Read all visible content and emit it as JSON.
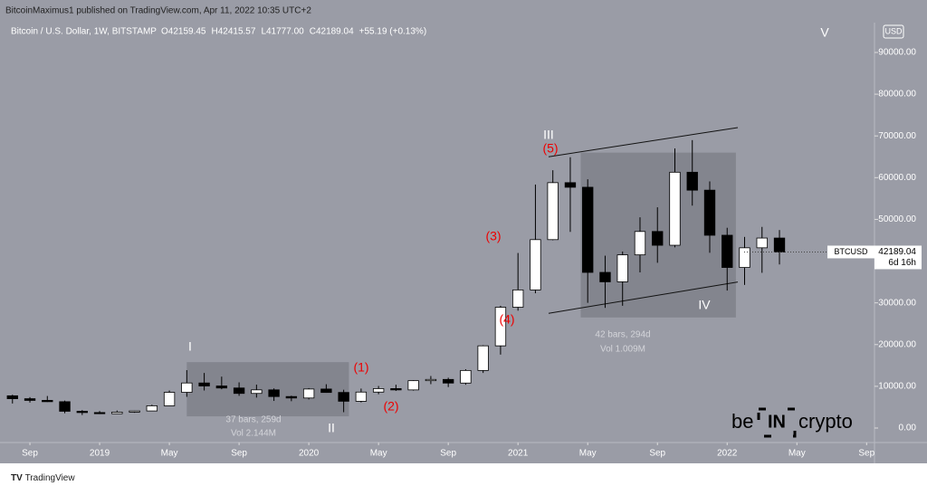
{
  "header": {
    "publisher": "BitcoinMaximus1 published on TradingView.com, Apr 11, 2022 10:35 UTC+2",
    "currency": "USD"
  },
  "footer": {
    "brand": "TradingView"
  },
  "logo": {
    "left": "be",
    "mid": "IN",
    "right": "crypto"
  },
  "chart_data": {
    "type": "candlestick",
    "title": "Bitcoin / U.S. Dollar, 1W, BITSTAMP",
    "ohlc_text": [
      "O42159.45",
      "H42415.57",
      "L41777.00",
      "C42189.04",
      "+55.19 (+0.13%)"
    ],
    "symbol": "BTCUSD",
    "last_price": 42189.04,
    "countdown": "6d 16h",
    "up_color": "#ffffff",
    "down_color": "#000000",
    "open": [
      7730,
      7030,
      6625,
      6317,
      4020,
      3710,
      3440,
      3820,
      4100,
      5330,
      8560,
      10800,
      10080,
      9600,
      8300,
      9150,
      7550,
      7200,
      9350,
      8530,
      6420,
      8620,
      9450,
      9140,
      11350,
      11650,
      10780,
      13800,
      19700,
      28950,
      33100,
      45150,
      58800,
      57700,
      37300,
      35040,
      41500,
      47100,
      43800,
      61300,
      57000,
      46200,
      38480,
      43190,
      45530
    ],
    "high": [
      7990,
      7410,
      7680,
      6580,
      4300,
      4080,
      4200,
      4150,
      5600,
      9000,
      13880,
      13200,
      12320,
      10950,
      10400,
      9500,
      7750,
      9570,
      10500,
      9180,
      9460,
      10080,
      10380,
      11450,
      12470,
      12060,
      14100,
      19850,
      29300,
      41950,
      58350,
      61780,
      64900,
      59600,
      41300,
      42300,
      50500,
      52900,
      67000,
      69000,
      59100,
      47990,
      45800,
      48200,
      47450
    ],
    "low": [
      5880,
      6110,
      6250,
      3550,
      3120,
      3350,
      3400,
      3670,
      4040,
      5290,
      7480,
      9000,
      9300,
      7720,
      7300,
      6500,
      6430,
      6870,
      8450,
      3800,
      6150,
      8100,
      8900,
      8970,
      10520,
      9820,
      10380,
      13200,
      17600,
      28130,
      32300,
      45000,
      47000,
      30000,
      28800,
      29300,
      37300,
      39600,
      43300,
      53300,
      42000,
      32950,
      34300,
      37200,
      39200
    ],
    "close": [
      7030,
      6625,
      6317,
      4020,
      3710,
      3440,
      3820,
      4100,
      5330,
      8560,
      10800,
      10080,
      9600,
      8300,
      9150,
      7550,
      7200,
      9350,
      8530,
      6420,
      8620,
      9450,
      9140,
      11350,
      11650,
      10780,
      13800,
      19700,
      28950,
      33100,
      45150,
      58800,
      57700,
      37300,
      35040,
      41500,
      47100,
      43800,
      61300,
      57000,
      46200,
      38480,
      43190,
      45530,
      42189.04
    ],
    "xlim": [
      -0.3,
      49.4
    ],
    "xticks": [
      {
        "value": 1,
        "label": "Sep"
      },
      {
        "value": 5,
        "label": "2019"
      },
      {
        "value": 9,
        "label": "May"
      },
      {
        "value": 13,
        "label": "Sep"
      },
      {
        "value": 17,
        "label": "2020"
      },
      {
        "value": 21,
        "label": "May"
      },
      {
        "value": 25,
        "label": "Sep"
      },
      {
        "value": 29,
        "label": "2021"
      },
      {
        "value": 33,
        "label": "May"
      },
      {
        "value": 37,
        "label": "Sep"
      },
      {
        "value": 41,
        "label": "2022"
      },
      {
        "value": 45,
        "label": "May"
      },
      {
        "value": 49,
        "label": "Sep"
      }
    ],
    "ylim": [
      -3250,
      96500
    ],
    "yticks": [
      {
        "value": 0,
        "label": "0.00"
      },
      {
        "value": 10000,
        "label": "10000.00"
      },
      {
        "value": 20000,
        "label": "20000.00"
      },
      {
        "value": 30000,
        "label": "30000.00"
      },
      {
        "value": 40000,
        "label": "40000.00"
      },
      {
        "value": 50000,
        "label": "50000.00"
      },
      {
        "value": 60000,
        "label": "60000.00"
      },
      {
        "value": 70000,
        "label": "70000.00"
      },
      {
        "value": 80000,
        "label": "80000.00"
      },
      {
        "value": 90000,
        "label": "90000.00"
      }
    ],
    "annotations": [
      "I",
      "II",
      "III",
      "IV",
      "V",
      "(1)",
      "(2)",
      "(3)",
      "(4)",
      "(5)"
    ],
    "ranges": [
      [
        "37 bars, 259d",
        "Vol 2.144M"
      ],
      [
        "42 bars, 294d",
        "Vol 1.009M"
      ]
    ]
  }
}
